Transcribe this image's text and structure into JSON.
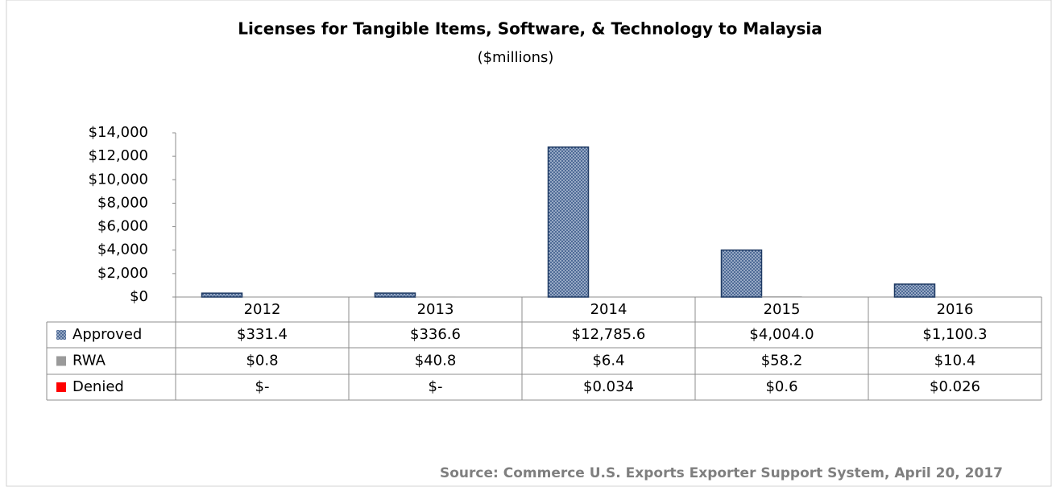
{
  "chart_data": {
    "type": "bar",
    "title": "Licenses for Tangible Items, Software, & Technology to Malaysia",
    "subtitle": "($millions)",
    "source": "Source: Commerce U.S. Exports Exporter Support System, April 20, 2017",
    "categories": [
      "2012",
      "2013",
      "2014",
      "2015",
      "2016"
    ],
    "series": [
      {
        "name": "Approved",
        "color": "#3b5a8a",
        "values": [
          331.4,
          336.6,
          12785.6,
          4004.0,
          1100.3
        ],
        "value_labels": [
          "$331.4",
          "$336.6",
          "$12,785.6",
          "$4,004.0",
          "$1,100.3"
        ]
      },
      {
        "name": "RWA",
        "color": "#9a9a9a",
        "values": [
          0.8,
          40.8,
          6.4,
          58.2,
          10.4
        ],
        "value_labels": [
          "$0.8",
          "$40.8",
          "$6.4",
          "$58.2",
          "$10.4"
        ]
      },
      {
        "name": "Denied",
        "color": "#ff0000",
        "values": [
          0,
          0,
          0.034,
          0.6,
          0.026
        ],
        "value_labels": [
          "$-",
          "$-",
          "$0.034",
          "$0.6",
          "$0.026"
        ]
      }
    ],
    "ylim": [
      0,
      14000
    ],
    "yticks": [
      {
        "value": 0,
        "label": "$0"
      },
      {
        "value": 2000,
        "label": "$2,000"
      },
      {
        "value": 4000,
        "label": "$4,000"
      },
      {
        "value": 6000,
        "label": "$6,000"
      },
      {
        "value": 8000,
        "label": "$8,000"
      },
      {
        "value": 10000,
        "label": "$10,000"
      },
      {
        "value": 12000,
        "label": "$12,000"
      },
      {
        "value": 14000,
        "label": "$14,000"
      }
    ],
    "grid": false
  }
}
